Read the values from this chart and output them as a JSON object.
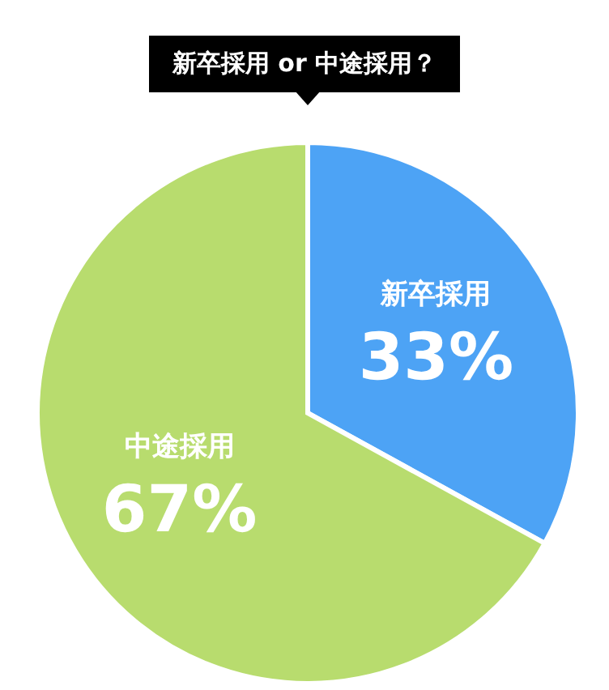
{
  "chart_data": {
    "type": "pie",
    "title": "新卒採用 or 中途採用？",
    "categories": [
      "新卒採用",
      "中途採用"
    ],
    "values": [
      33,
      67
    ],
    "colors": [
      "#4da3f5",
      "#b8dc6e"
    ],
    "value_labels": [
      "33%",
      "67%"
    ]
  }
}
